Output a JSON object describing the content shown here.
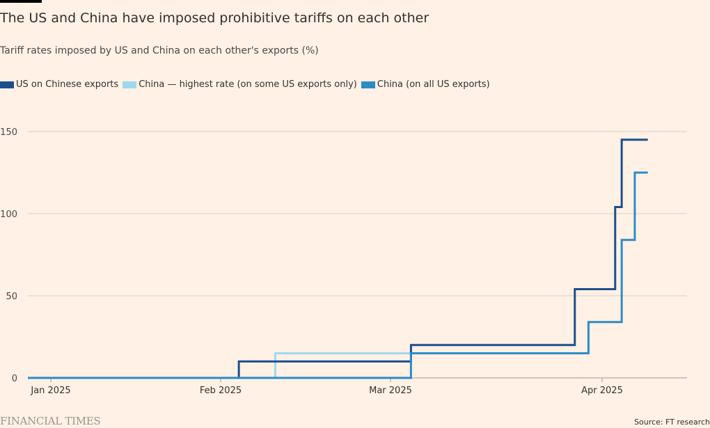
{
  "header": {
    "title": "The US and China have imposed prohibitive tariffs on each other",
    "subtitle": "Tariff rates imposed by US and China on each other's exports (%)"
  },
  "footer": {
    "logo": "FINANCIAL TIMES",
    "source": "Source: FT research"
  },
  "chart_data": {
    "type": "line",
    "step": true,
    "title": "The US and China have imposed prohibitive tariffs on each other",
    "subtitle": "Tariff rates imposed by US and China on each other's exports (%)",
    "xlabel": "",
    "ylabel": "",
    "ylim": [
      0,
      150
    ],
    "yticks": [
      0,
      50,
      100,
      150
    ],
    "ytick_labels": [
      "0",
      "50",
      "100",
      "150"
    ],
    "xlim": [
      "2024-12-28",
      "2025-04-14"
    ],
    "xticks": [
      "2025-01-01",
      "2025-02-01",
      "2025-03-01",
      "2025-04-01"
    ],
    "xtick_labels": [
      "Jan 2025",
      "Feb 2025",
      "Mar 2025",
      "Apr 2025"
    ],
    "grid": true,
    "legend": "top-left",
    "series": [
      {
        "name": "US on Chinese exports",
        "color": "#1f4e8c",
        "points": [
          {
            "date": "2024-12-28",
            "value": 0
          },
          {
            "date": "2025-02-04",
            "value": 10
          },
          {
            "date": "2025-03-04",
            "value": 20
          },
          {
            "date": "2025-03-28",
            "value": 54
          },
          {
            "date": "2025-04-03",
            "value": 104
          },
          {
            "date": "2025-04-04",
            "value": 145
          },
          {
            "date": "2025-04-08",
            "value": 145
          }
        ]
      },
      {
        "name": "China — highest rate (on some US exports only)",
        "color": "#9ed8ec",
        "points": [
          {
            "date": "2025-02-10",
            "value": 0
          },
          {
            "date": "2025-02-10",
            "value": 15
          },
          {
            "date": "2025-03-04",
            "value": 15
          }
        ]
      },
      {
        "name": "China (on all US exports)",
        "color": "#2b8cc8",
        "points": [
          {
            "date": "2024-12-28",
            "value": 0
          },
          {
            "date": "2025-03-04",
            "value": 15
          },
          {
            "date": "2025-03-30",
            "value": 34
          },
          {
            "date": "2025-04-04",
            "value": 84
          },
          {
            "date": "2025-04-06",
            "value": 125
          },
          {
            "date": "2025-04-08",
            "value": 125
          }
        ]
      }
    ]
  }
}
